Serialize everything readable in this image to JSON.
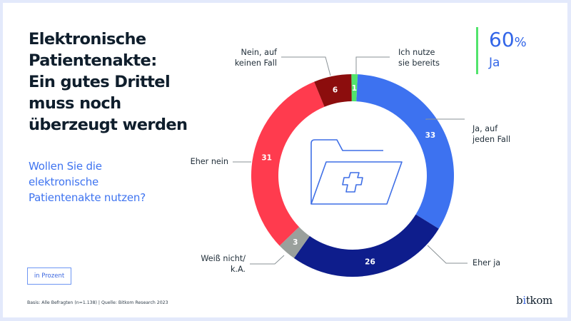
{
  "header": {
    "title_lines": [
      "Elektronische",
      "Patientenakte:",
      "Ein gutes Drittel",
      "muss noch",
      "überzeugt werden"
    ],
    "question_lines": [
      "Wollen Sie die",
      "elektronische",
      "Patientenakte nutzen?"
    ]
  },
  "kpi": {
    "value": "60",
    "unit": "%",
    "label": "Ja",
    "accent": "#52e46c"
  },
  "unit_badge": "in Prozent",
  "source": "Basis: Alle Befragten (n=1.138) | Quelle: Bitkom Research 2023",
  "logo": {
    "pre": "b",
    "dot_letter": "i",
    "post": "tkom"
  },
  "chart_data": {
    "type": "pie",
    "variant": "donut",
    "title": "Wollen Sie die elektronische Patientenakte nutzen?",
    "unit": "in Prozent",
    "start": "top",
    "direction": "clockwise",
    "categories": [
      "Ich nutze sie bereits",
      "Ja, auf jeden Fall",
      "Eher ja",
      "Weiß nicht/ k.A.",
      "Eher nein",
      "Nein, auf keinen Fall"
    ],
    "values": [
      1,
      33,
      26,
      3,
      31,
      6
    ],
    "colors": [
      "#52e46c",
      "#3d72f0",
      "#0e1d8c",
      "#9aa09c",
      "#ff3b4e",
      "#8c0d0d"
    ],
    "label_lines": [
      [
        "Ich nutze",
        "sie bereits"
      ],
      [
        "Ja, auf",
        "jeden Fall"
      ],
      [
        "Eher ja"
      ],
      [
        "Weiß nicht/",
        "k.A."
      ],
      [
        "Eher nein"
      ],
      [
        "Nein, auf",
        "keinen Fall"
      ]
    ],
    "value_labels": [
      "1",
      "33",
      "26",
      "3",
      "31",
      "6"
    ],
    "center_icon": "medical-folder-icon"
  }
}
